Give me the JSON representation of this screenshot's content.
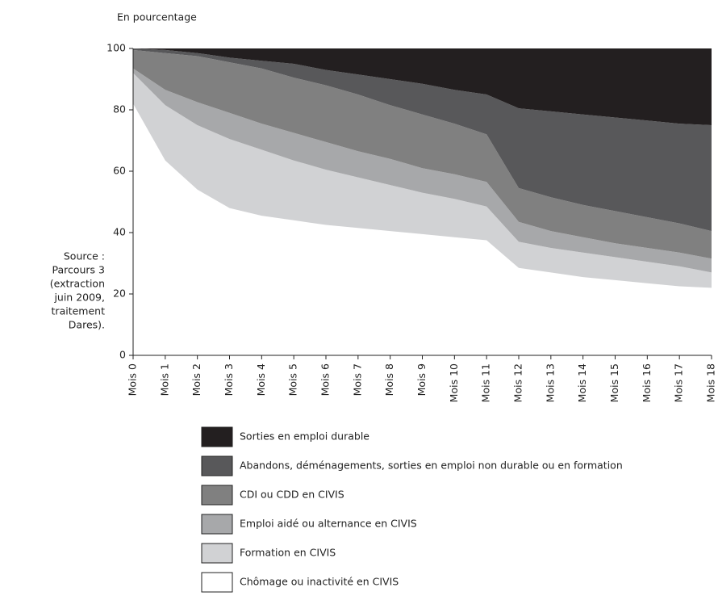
{
  "chart_data": {
    "type": "stacked_area",
    "y_axis_label": "En pourcentage",
    "source_lines": [
      "Source :",
      "Parcours 3",
      "(extraction",
      "juin 2009,",
      "traitement",
      "Dares)."
    ],
    "categories": [
      "Mois 0",
      "Mois 1",
      "Mois 2",
      "Mois 3",
      "Mois 4",
      "Mois 5",
      "Mois 6",
      "Mois 7",
      "Mois 8",
      "Mois 9",
      "Mois 10",
      "Mois 11",
      "Mois 12",
      "Mois 13",
      "Mois 14",
      "Mois 15",
      "Mois 16",
      "Mois 17",
      "Mois 18"
    ],
    "series": [
      {
        "name": "Chômage ou inactivité en CIVIS",
        "color": "#ffffff",
        "values": [
          82,
          63.5,
          54,
          48,
          45.5,
          44,
          42.5,
          41.5,
          40.5,
          39.5,
          38.5,
          37.5,
          28.5,
          27,
          25.5,
          24.5,
          23.5,
          22.5,
          22
        ]
      },
      {
        "name": "Formation en CIVIS",
        "color": "#d1d2d4",
        "values": [
          10,
          18,
          21,
          22.5,
          21.5,
          19.5,
          18,
          16.5,
          15,
          13.5,
          12.5,
          11,
          8.5,
          8,
          8,
          7.5,
          7,
          6.5,
          5
        ]
      },
      {
        "name": "Emploi aidé ou alternance en CIVIS",
        "color": "#a7a8aa",
        "values": [
          1.5,
          5,
          7.5,
          8.5,
          8.5,
          9,
          9,
          8.5,
          8.5,
          8,
          8,
          8,
          6.5,
          5.5,
          5,
          4.5,
          4.5,
          4.5,
          4.5
        ]
      },
      {
        "name": "CDI ou CDD en CIVIS",
        "color": "#808080",
        "values": [
          6,
          12,
          15,
          16.5,
          18,
          18,
          18.5,
          18.5,
          17.5,
          17.5,
          16.5,
          15.5,
          11,
          11,
          10.5,
          10.5,
          10,
          9.5,
          9
        ]
      },
      {
        "name": "Abandons, déménagements, sorties en emploi non durable ou en formation",
        "color": "#58585a",
        "values": [
          0.5,
          1,
          1,
          1.5,
          2.5,
          4.5,
          5,
          6.5,
          8.5,
          10,
          11,
          13,
          26,
          28,
          29.5,
          30.5,
          31.5,
          32.5,
          34.5
        ]
      },
      {
        "name": "Sorties en emploi durable",
        "color": "#231f20",
        "values": [
          0,
          0.5,
          1.5,
          3,
          4,
          5,
          7,
          8.5,
          10,
          11.5,
          13.5,
          15,
          19.5,
          20.5,
          21.5,
          22.5,
          23.5,
          24.5,
          25
        ]
      }
    ],
    "ylim": [
      0,
      100
    ],
    "yticks": [
      0,
      20,
      40,
      60,
      80,
      100
    ]
  }
}
